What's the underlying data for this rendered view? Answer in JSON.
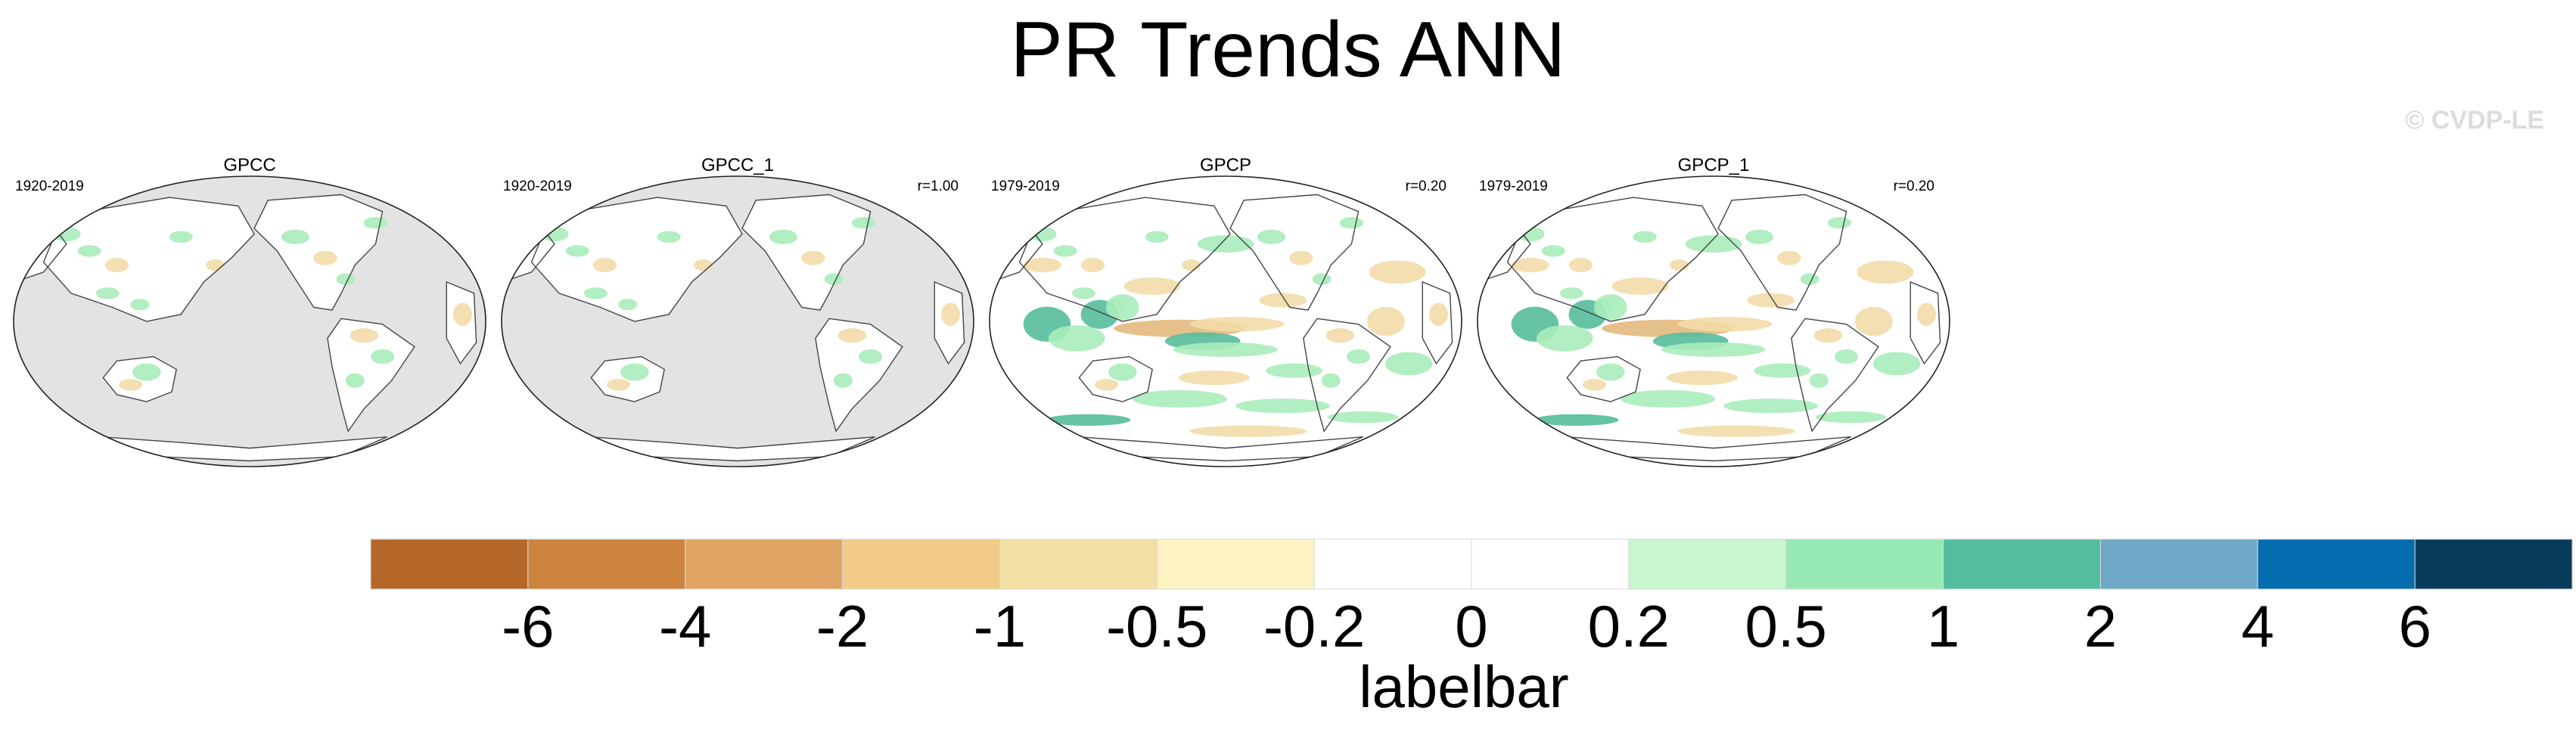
{
  "title": "PR Trends ANN",
  "watermark": "© CVDP-LE",
  "panels": [
    {
      "name": "GPCC",
      "period": "1920-2019",
      "corr": "",
      "land_only": true
    },
    {
      "name": "GPCC_1",
      "period": "1920-2019",
      "corr": "r=1.00",
      "land_only": true
    },
    {
      "name": "GPCP",
      "period": "1979-2019",
      "corr": "r=0.20",
      "land_only": false
    },
    {
      "name": "GPCP_1",
      "period": "1979-2019",
      "corr": "r=0.20",
      "land_only": false
    }
  ],
  "colorbar": {
    "title": "labelbar",
    "levels": [
      "-6",
      "-4",
      "-2",
      "-1",
      "-0.5",
      "-0.2",
      "0",
      "0.2",
      "0.5",
      "1",
      "2",
      "4",
      "6"
    ],
    "colors": [
      "#b5672a",
      "#cc843e",
      "#e0a565",
      "#f2cb87",
      "#f4e0a3",
      "#fdf3c2",
      "#ffffff",
      "#ffffff",
      "#c8f7cd",
      "#97e9b3",
      "#54bd9d",
      "#70a8c8",
      "#046daf",
      "#063b5a"
    ]
  },
  "map_colors": {
    "missing": "#e3e3e3",
    "dry_strong": "#e3b97d",
    "dry": "#f2dca8",
    "wet": "#a9ecbb",
    "wet_strong": "#55bc9b"
  }
}
